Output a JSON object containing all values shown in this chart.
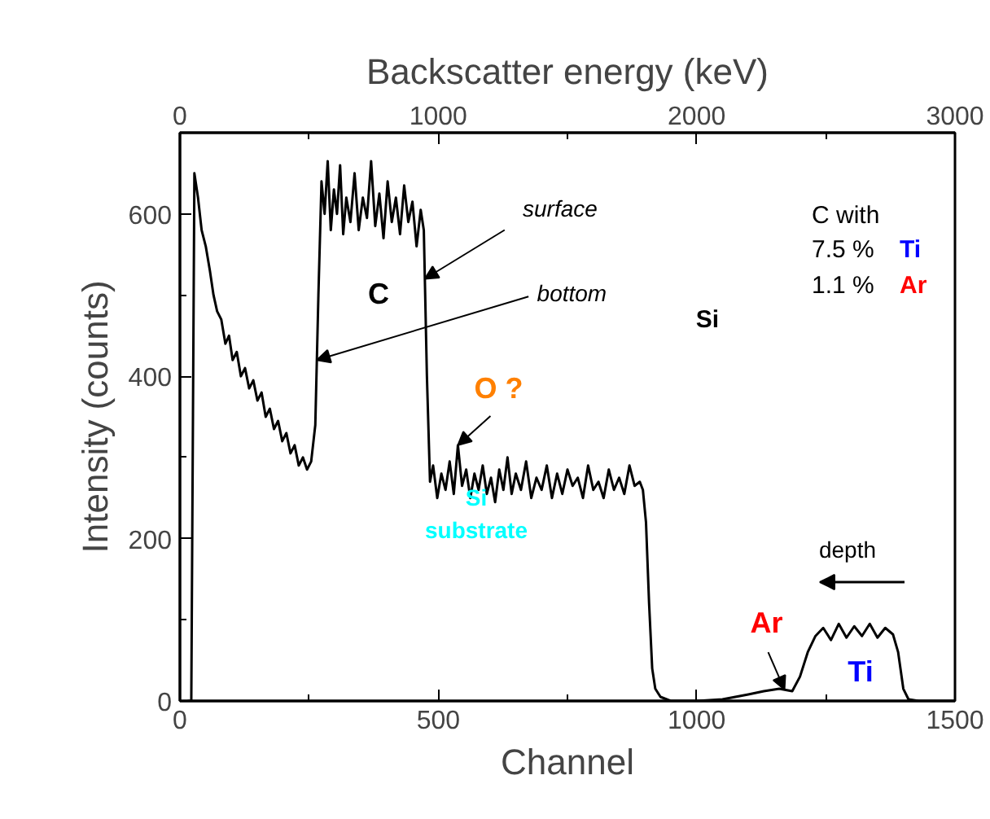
{
  "chart_data": {
    "type": "line",
    "xlabel": "Channel",
    "ylabel": "Intensity (counts)",
    "x2label": "Backscatter energy (keV)",
    "xlim": [
      0,
      1500
    ],
    "xticks": [
      0,
      {
        "value": 250,
        "label": null
      },
      500,
      {
        "value": 750,
        "label": null
      },
      1000,
      {
        "value": 1250,
        "label": null
      },
      1500
    ],
    "x2lim": [
      0,
      3000
    ],
    "x2ticks": [
      0,
      {
        "value": 500,
        "label": null
      },
      1000,
      {
        "value": 1500,
        "label": null
      },
      2000,
      {
        "value": 2500,
        "label": null
      },
      3000
    ],
    "ylim": [
      0,
      700
    ],
    "yticks": [
      0,
      {
        "value": 100,
        "label": null
      },
      200,
      {
        "value": 300,
        "label": null
      },
      400,
      {
        "value": 500,
        "label": null
      },
      600
    ],
    "grid": false,
    "marker": "none",
    "line_style": "solid",
    "series": [
      {
        "color": "#000000",
        "x": [
          15,
          18,
          22,
          28,
          35,
          42,
          50,
          58,
          65,
          72,
          80,
          88,
          95,
          102,
          110,
          118,
          126,
          134,
          142,
          150,
          158,
          166,
          174,
          182,
          190,
          198,
          206,
          214,
          222,
          230,
          238,
          246,
          254,
          262,
          268,
          274,
          280,
          286,
          292,
          298,
          304,
          310,
          316,
          322,
          330,
          338,
          346,
          354,
          362,
          370,
          378,
          386,
          394,
          402,
          410,
          418,
          426,
          434,
          442,
          450,
          458,
          466,
          472,
          478,
          484,
          490,
          498,
          506,
          514,
          522,
          530,
          538,
          546,
          554,
          562,
          570,
          578,
          586,
          594,
          602,
          610,
          618,
          626,
          634,
          642,
          650,
          660,
          670,
          680,
          690,
          700,
          710,
          720,
          730,
          740,
          750,
          760,
          770,
          780,
          790,
          800,
          810,
          820,
          830,
          840,
          850,
          860,
          870,
          880,
          890,
          896,
          902,
          908,
          914,
          920,
          930,
          950,
          1000,
          1050,
          1100,
          1130,
          1160,
          1185,
          1200,
          1215,
          1230,
          1245,
          1260,
          1275,
          1290,
          1305,
          1320,
          1335,
          1350,
          1365,
          1380,
          1390,
          1400,
          1410,
          1430,
          1500
        ],
        "values": [
          0,
          null,
          null,
          650,
          620,
          580,
          560,
          530,
          500,
          480,
          470,
          440,
          450,
          420,
          430,
          400,
          410,
          385,
          395,
          370,
          380,
          350,
          360,
          335,
          345,
          320,
          330,
          305,
          315,
          290,
          300,
          285,
          295,
          340,
          500,
          640,
          600,
          665,
          580,
          630,
          600,
          660,
          575,
          620,
          590,
          650,
          580,
          620,
          595,
          665,
          585,
          625,
          570,
          640,
          590,
          620,
          575,
          635,
          590,
          615,
          560,
          605,
          580,
          400,
          270,
          290,
          250,
          280,
          260,
          295,
          255,
          315,
          265,
          285,
          250,
          280,
          260,
          290,
          255,
          275,
          245,
          285,
          260,
          300,
          255,
          280,
          260,
          295,
          250,
          275,
          260,
          290,
          250,
          280,
          255,
          285,
          265,
          275,
          250,
          290,
          260,
          270,
          250,
          285,
          260,
          275,
          255,
          290,
          265,
          270,
          260,
          220,
          120,
          40,
          15,
          5,
          0,
          0,
          2,
          8,
          12,
          15,
          12,
          30,
          60,
          80,
          90,
          75,
          95,
          78,
          92,
          80,
          95,
          78,
          90,
          82,
          60,
          15,
          2,
          0,
          0
        ]
      }
    ],
    "annotations": [
      "C",
      {
        "text": "surface",
        "x": 474,
        "y": 520
      },
      {
        "text": "bottom",
        "x": 265,
        "y": 420
      },
      {
        "text": "O ?",
        "x": 538,
        "y": 315
      },
      "Si",
      "substrate",
      {
        "text": "Ar",
        "x": 1170,
        "y": 14
      },
      "Ti",
      "depth",
      "C with",
      "7.5 %",
      "Ti",
      "1.1 %",
      "Ar",
      "Si"
    ]
  }
}
